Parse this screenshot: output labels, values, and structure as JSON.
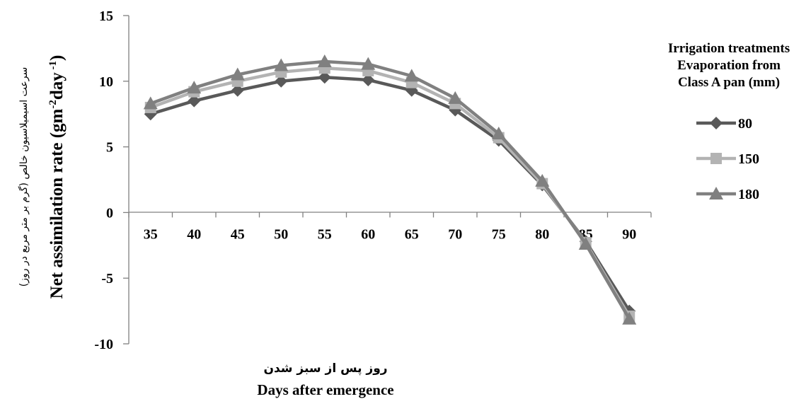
{
  "chart_data": {
    "type": "line",
    "categories": [
      "35",
      "40",
      "45",
      "50",
      "55",
      "60",
      "65",
      "70",
      "75",
      "80",
      "85",
      "90"
    ],
    "x": [
      35,
      40,
      45,
      50,
      55,
      60,
      65,
      70,
      75,
      80,
      85,
      90
    ],
    "series": [
      {
        "name": "80",
        "color": "#595959",
        "marker": "diamond",
        "values": [
          7.5,
          8.5,
          9.3,
          10.0,
          10.3,
          10.1,
          9.3,
          7.8,
          5.5,
          2.1,
          -2.2,
          -7.5
        ]
      },
      {
        "name": "150",
        "color": "#b3b3b3",
        "marker": "square",
        "values": [
          8.0,
          9.2,
          10.0,
          10.7,
          11.0,
          10.8,
          9.9,
          8.3,
          5.7,
          2.2,
          -2.3,
          -7.9
        ]
      },
      {
        "name": "180",
        "color": "#808080",
        "marker": "triangle",
        "values": [
          8.3,
          9.5,
          10.5,
          11.2,
          11.5,
          11.3,
          10.4,
          8.7,
          6.0,
          2.4,
          -2.4,
          -8.1
        ]
      }
    ],
    "ylim": [
      -10,
      15
    ],
    "yticks": [
      "15",
      "10",
      "5",
      "0",
      "-5",
      "-10"
    ],
    "ylabel": "Net assimilation rate (gm",
    "ylabel_sup1": "-2",
    "ylabel_mid": "day",
    "ylabel_sup2": " -1",
    "ylabel_end": ")",
    "ylabel_fa": "سرعت اسیمیلاسیون خالص (گرم بر متر مربع در روز)",
    "xlabel": "Days after emergence",
    "xlabel_fa": "روز پس از سبز شدن",
    "legend_title": [
      "Irrigation treatments",
      "Evaporation from",
      "Class A pan (mm)"
    ],
    "legend_position": "right",
    "grid": false
  }
}
